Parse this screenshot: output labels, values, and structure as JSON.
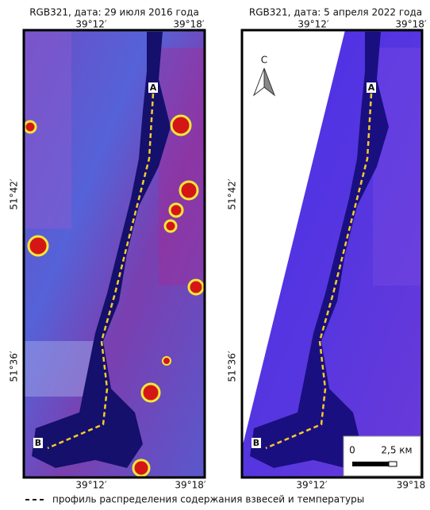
{
  "panels": [
    {
      "title": "RGB321, дата: 29 июля 2016 года",
      "top_labels": [
        "39°12′",
        "39°18′"
      ],
      "bottom_labels": [
        "39°12′",
        "39°18′"
      ],
      "left_labels": [
        "51°42′",
        "51°36′"
      ],
      "profile_start": "A",
      "profile_end": "B"
    },
    {
      "title": "RGB321, дата: 5 апреля 2022 года",
      "top_labels": [
        "39°12′",
        "39°18′"
      ],
      "bottom_labels": [
        "39°12′",
        "39°18"
      ],
      "left_labels": [
        "51°42′",
        "51°36′"
      ],
      "profile_start": "A",
      "profile_end": "B"
    }
  ],
  "north_arrow": "С",
  "scale_bar": {
    "start": "0",
    "end": "2,5 км"
  },
  "legend": "профиль распределения содержания взвесей и температуры"
}
